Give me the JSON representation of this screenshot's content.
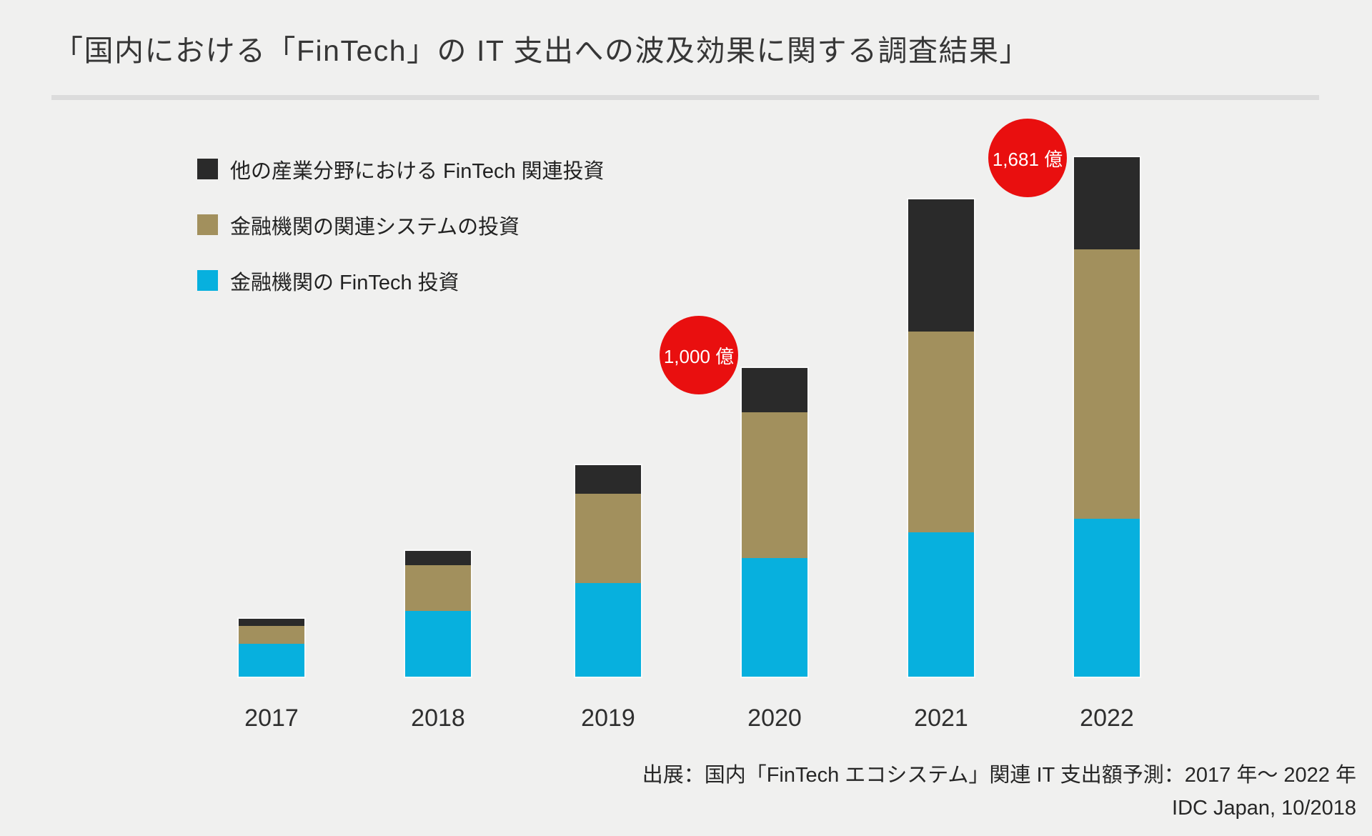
{
  "title": "「国内における「FinTech」の IT 支出への波及効果に関する調査結果」",
  "legend": [
    {
      "label": "他の産業分野における FinTech 関連投資",
      "color": "#2a2a2a"
    },
    {
      "label": "金融機関の関連システムの投資",
      "color": "#a2905d"
    },
    {
      "label": "金融機関の FinTech 投資",
      "color": "#07b0de"
    }
  ],
  "chart_data": {
    "type": "bar",
    "stacked": true,
    "title": "国内における「FinTech」の IT 支出への波及効果",
    "unit": "億円",
    "categories": [
      "2017",
      "2018",
      "2019",
      "2020",
      "2021",
      "2022"
    ],
    "series": [
      {
        "name": "金融機関の FinTech 投資",
        "color": "#07b0de",
        "values": [
          107,
          212,
          302,
          384,
          467,
          511
        ]
      },
      {
        "name": "金融機関の関連システムの投資",
        "color": "#a2905d",
        "values": [
          58,
          149,
          291,
          472,
          649,
          872
        ]
      },
      {
        "name": "他の産業分野における FinTech 関連投資",
        "color": "#2a2a2a",
        "values": [
          23,
          46,
          91,
          144,
          428,
          298
        ]
      }
    ],
    "totals_estimated": [
      188,
      407,
      684,
      1000,
      1544,
      1681
    ],
    "annotations": [
      {
        "category": "2020",
        "label": "1,000 億"
      },
      {
        "category": "2022",
        "label": "1,681 億"
      }
    ],
    "ylim": [
      0,
      1800
    ],
    "grid": false,
    "legend_position": "upper-left",
    "annotation_color": "#e90f0f"
  },
  "source": {
    "line1": "出展：国内「FinTech エコシステム」関連 IT 支出額予測：2017 年～ 2022 年",
    "line2": "IDC Japan, 10/2018"
  },
  "colors": {
    "background": "#f0f0ef",
    "divider": "#dcdcdc",
    "title_text": "#363636",
    "body_text": "#262626",
    "bubble_red": "#e90f0f"
  }
}
